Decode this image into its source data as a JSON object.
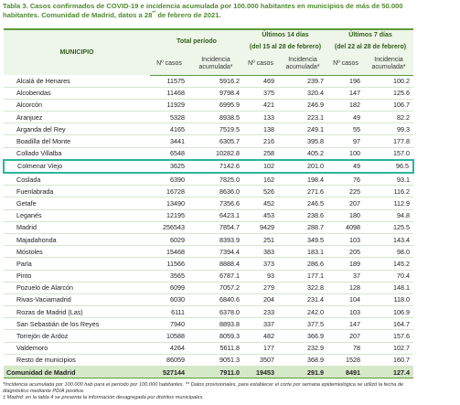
{
  "header": {
    "title": {
      "before": "Tabla 3. Casos confirmados de COVID-19 e incidencia acumulada por 100.000 habitantes en municipios de más de 50.000 habitantes. Comunidad de Madrid, datos a 28",
      "sup": "**",
      "after": " de febrero de 2021."
    }
  },
  "table": {
    "municipio": "MUNICIPIO",
    "groups": [
      "Total período",
      "Últimos 14 días",
      "Últimos 7 días"
    ],
    "periods": [
      "(del 15 al 28 de febrero)",
      "(del 22 al 28 de febrero)"
    ],
    "subheaders": [
      "Nº casos",
      "Incidencia acumulada*",
      "Nº casos",
      "Incidencia acumulada*",
      "Nº casos",
      "Incidencia acumulada*"
    ],
    "highlighted_row": 7,
    "rows": [
      [
        "Alcalá de Henares",
        "11575",
        "5916.2",
        "469",
        "239.7",
        "196",
        "100.2"
      ],
      [
        "Alcobendas",
        "11468",
        "9798.4",
        "375",
        "320.4",
        "147",
        "125.6"
      ],
      [
        "Alcorcón",
        "11929",
        "6995.9",
        "421",
        "246.9",
        "182",
        "106.7"
      ],
      [
        "Aranjuez",
        "5328",
        "8938.5",
        "133",
        "223.1",
        "49",
        "82.2"
      ],
      [
        "Arganda del Rey",
        "4165",
        "7519.5",
        "138",
        "249.1",
        "55",
        "99.3"
      ],
      [
        "Boadilla del Monte",
        "3441",
        "6305.7",
        "216",
        "395.8",
        "97",
        "177.8"
      ],
      [
        "Collado Villalba",
        "6548",
        "10282.8",
        "258",
        "405.2",
        "100",
        "157.0"
      ],
      [
        "Colmenar Viejo",
        "3625",
        "7142.6",
        "102",
        "201.0",
        "49",
        "96.5"
      ],
      [
        "Coslada",
        "6390",
        "7825.0",
        "162",
        "198.4",
        "76",
        "93.1"
      ],
      [
        "Fuenlabrada",
        "16728",
        "8636.0",
        "526",
        "271.6",
        "225",
        "116.2"
      ],
      [
        "Getafe",
        "13490",
        "7356.6",
        "452",
        "246.5",
        "207",
        "112.9"
      ],
      [
        "Leganés",
        "12195",
        "6423.1",
        "453",
        "238.6",
        "180",
        "94.8"
      ],
      [
        "Madrid",
        "256543",
        "7854.7",
        "9429",
        "288.7",
        "4098",
        "125.5"
      ],
      [
        "Majadahonda",
        "6029",
        "8393.9",
        "251",
        "349.5",
        "103",
        "143.4"
      ],
      [
        "Móstoles",
        "15468",
        "7394.4",
        "383",
        "183.1",
        "205",
        "98.0"
      ],
      [
        "Parla",
        "11566",
        "8888.4",
        "373",
        "286.6",
        "189",
        "145.2"
      ],
      [
        "Pinto",
        "3565",
        "6787.1",
        "93",
        "177.1",
        "37",
        "70.4"
      ],
      [
        "Pozuelo de Alarcón",
        "6099",
        "7057.2",
        "279",
        "322.8",
        "128",
        "148.1"
      ],
      [
        "Rivas-Vaciamadrid",
        "6030",
        "6840.6",
        "204",
        "231.4",
        "104",
        "118.0"
      ],
      [
        "Rozas de Madrid (Las)",
        "6111",
        "6378.0",
        "233",
        "242.0",
        "103",
        "106.9"
      ],
      [
        "San Sebastián de los Reyes",
        "7940",
        "8893.8",
        "337",
        "377.5",
        "147",
        "164.7"
      ],
      [
        "Torrejón de Ardoz",
        "10588",
        "8059.3",
        "482",
        "366.9",
        "207",
        "157.6"
      ],
      [
        "Valdemoro",
        "4264",
        "5611.8",
        "177",
        "232.9",
        "78",
        "102.7"
      ],
      [
        "Resto de municipios",
        "86059",
        "9051.3",
        "3507",
        "368.9",
        "1528",
        "160.7"
      ]
    ],
    "total": [
      "Comunidad de Madrid",
      "527144",
      "7911.0",
      "19453",
      "291.9",
      "8491",
      "127.4"
    ]
  },
  "notes": [
    "*Incidencia acumulada por 100.000 hab para el período por 100.000 habitantes. ** Datos provisionales, para establecer el corte por semana epidemiológica se utilizó la fecha de diagnóstico mediante PDIA positiva.",
    "‡ Madrid: en la tabla 4 se presenta la información desagregada por distritos municipales."
  ]
}
